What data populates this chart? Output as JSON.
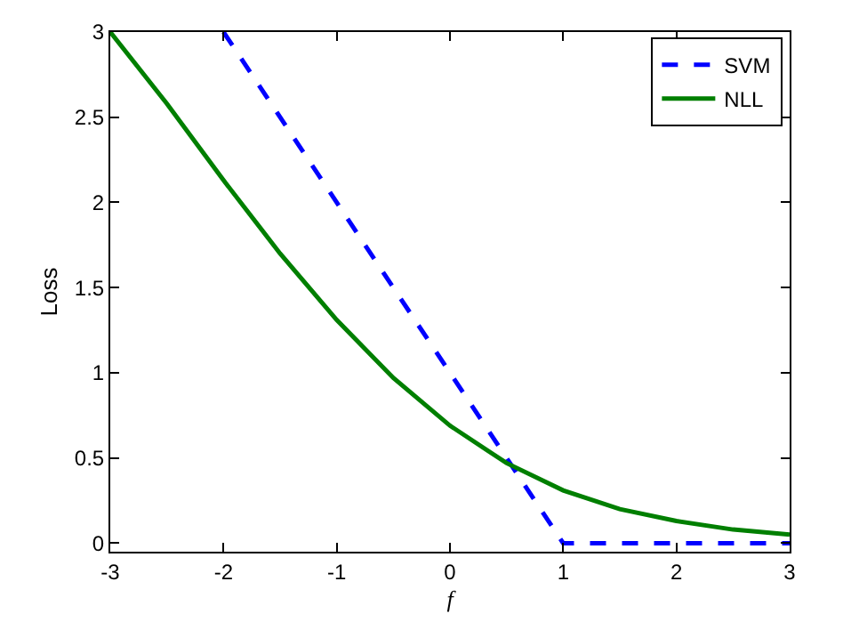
{
  "chart_data": {
    "type": "line",
    "xlabel": "f",
    "ylabel": "Loss",
    "xlim": [
      -3,
      3
    ],
    "ylim": [
      -0.05,
      3
    ],
    "xticks": [
      -3,
      -2,
      -1,
      0,
      1,
      2,
      3
    ],
    "yticks": [
      0,
      0.5,
      1,
      1.5,
      2,
      2.5,
      3
    ],
    "legend": "top right",
    "marker": "none",
    "series": [
      {
        "name": "SVM",
        "color": "#0000ff",
        "line_style": "dashed",
        "x": [
          -2,
          1,
          3
        ],
        "values": [
          3,
          0,
          0
        ]
      },
      {
        "name": "NLL",
        "color": "#007f00",
        "line_style": "solid",
        "x": [
          -3,
          -2.5,
          -2,
          -1.5,
          -1,
          -0.5,
          0,
          0.5,
          1,
          1.5,
          2,
          2.5,
          3
        ],
        "values": [
          3.0,
          2.58,
          2.13,
          1.7,
          1.31,
          0.97,
          0.69,
          0.47,
          0.31,
          0.2,
          0.13,
          0.08,
          0.05
        ]
      }
    ]
  }
}
